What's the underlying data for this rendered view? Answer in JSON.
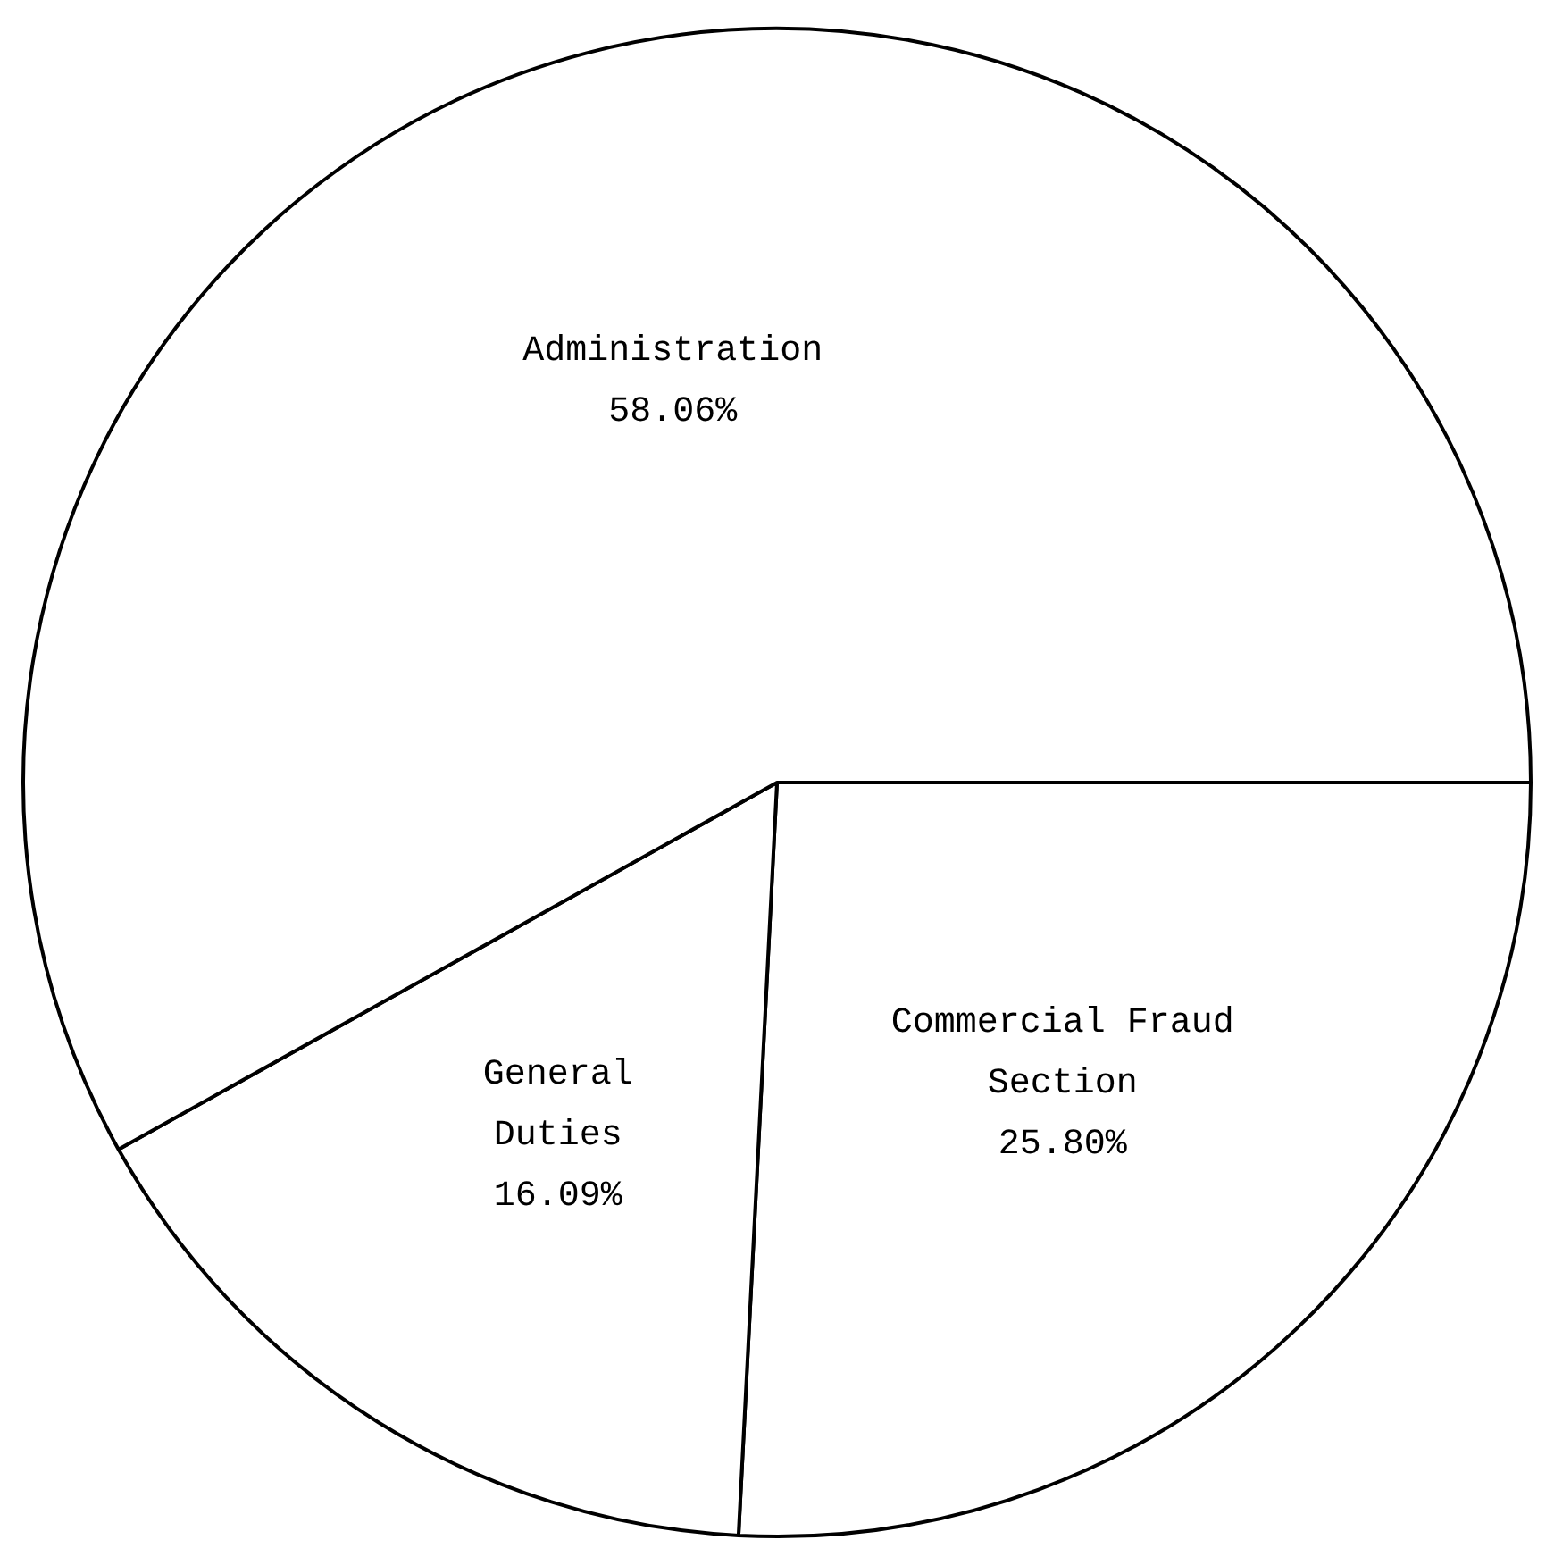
{
  "chart_data": {
    "type": "pie",
    "categories": [
      "Commercial Fraud Section",
      "General Duties",
      "Administration"
    ],
    "values": [
      25.8,
      16.09,
      58.06
    ],
    "value_labels": [
      "25.80%",
      "16.09%",
      "58.06%"
    ],
    "colors": [
      "#ffffff",
      "#ffffff",
      "#ffffff"
    ],
    "legend": false
  }
}
